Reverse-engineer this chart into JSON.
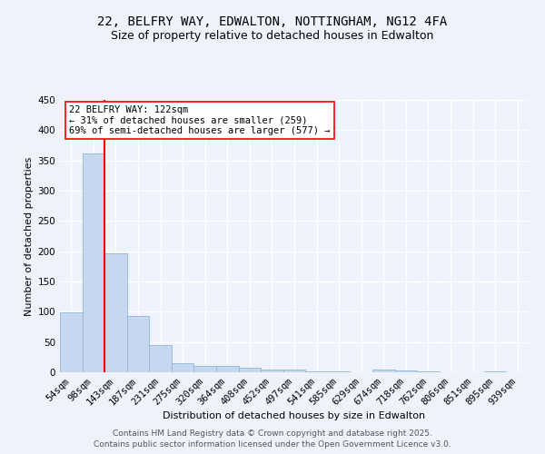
{
  "title1": "22, BELFRY WAY, EDWALTON, NOTTINGHAM, NG12 4FA",
  "title2": "Size of property relative to detached houses in Edwalton",
  "xlabel": "Distribution of detached houses by size in Edwalton",
  "ylabel": "Number of detached properties",
  "categories": [
    "54sqm",
    "98sqm",
    "143sqm",
    "187sqm",
    "231sqm",
    "275sqm",
    "320sqm",
    "364sqm",
    "408sqm",
    "452sqm",
    "497sqm",
    "541sqm",
    "585sqm",
    "629sqm",
    "674sqm",
    "718sqm",
    "762sqm",
    "806sqm",
    "851sqm",
    "895sqm",
    "939sqm"
  ],
  "values": [
    99,
    362,
    196,
    93,
    45,
    15,
    10,
    10,
    8,
    5,
    4,
    1,
    1,
    0,
    4,
    3,
    1,
    0,
    0,
    2,
    0
  ],
  "bar_color": "#c5d8f0",
  "bar_edge_color": "#92b4d8",
  "vline_x": 1.5,
  "vline_color": "red",
  "annotation_text": "22 BELFRY WAY: 122sqm\n← 31% of detached houses are smaller (259)\n69% of semi-detached houses are larger (577) →",
  "annotation_box_color": "white",
  "annotation_box_edge": "red",
  "ylim": [
    0,
    450
  ],
  "yticks": [
    0,
    50,
    100,
    150,
    200,
    250,
    300,
    350,
    400,
    450
  ],
  "footer1": "Contains HM Land Registry data © Crown copyright and database right 2025.",
  "footer2": "Contains public sector information licensed under the Open Government Licence v3.0.",
  "background_color": "#eef3fb",
  "plot_bg_color": "#eef3fb",
  "grid_color": "#ffffff",
  "title_fontsize": 10,
  "subtitle_fontsize": 9,
  "axis_label_fontsize": 8,
  "tick_fontsize": 7.5,
  "footer_fontsize": 6.5,
  "ann_fontsize": 7.5
}
